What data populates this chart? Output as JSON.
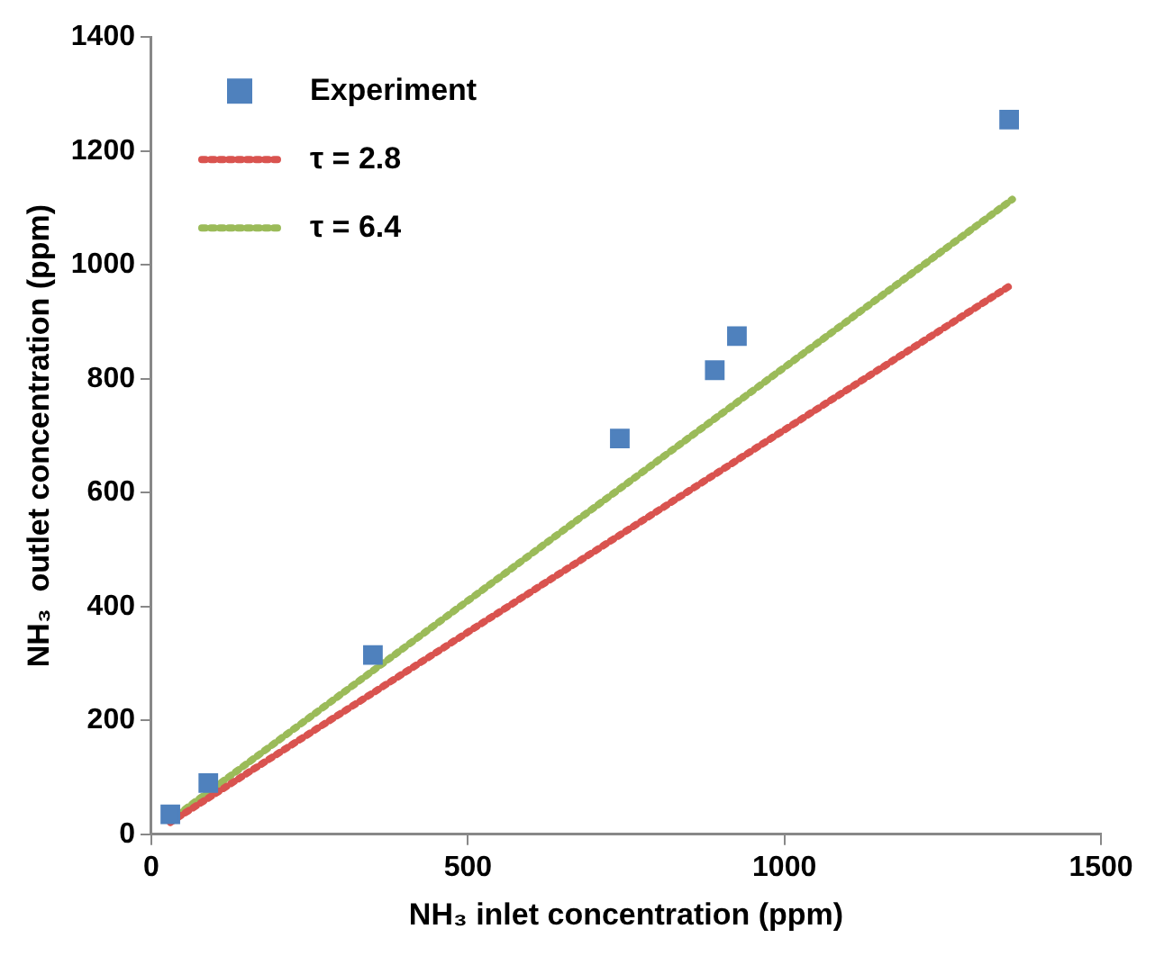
{
  "chart_data": {
    "type": "scatter",
    "xlabel": "NH₃ inlet concentration (ppm)",
    "ylabel": "NH₃  outlet concentration (ppm)",
    "xlim": [
      0,
      1500
    ],
    "xticks": [
      0,
      500,
      1000,
      1500
    ],
    "ylim": [
      0,
      1400
    ],
    "yticks": [
      0,
      200,
      400,
      600,
      800,
      1000,
      1200,
      1400
    ],
    "grid": false,
    "legend": "top left",
    "series": [
      {
        "name": "Experiment",
        "marker": "square",
        "color": "#4f81bd",
        "x": [
          30,
          90,
          350,
          740,
          890,
          925,
          1355
        ],
        "values": [
          35,
          90,
          315,
          695,
          815,
          875,
          1255
        ]
      },
      {
        "name": "τ = 2.8",
        "type": "line",
        "marker": "none",
        "line_style": "dotted",
        "color": "#d9534f",
        "x": [
          30,
          1360
        ],
        "values": [
          21,
          966
        ]
      },
      {
        "name": "τ = 6.4",
        "type": "line",
        "marker": "none",
        "line_style": "dotted",
        "color": "#9bbb59",
        "x": [
          30,
          1360
        ],
        "values": [
          25,
          1115
        ]
      }
    ]
  }
}
